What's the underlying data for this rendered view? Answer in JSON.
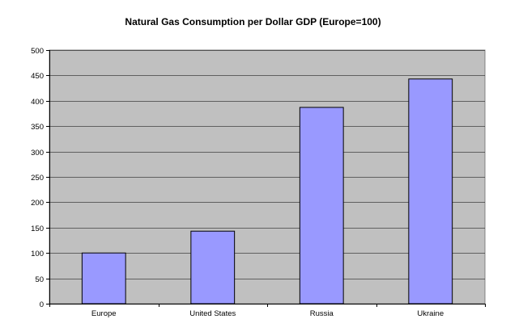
{
  "chart_data": {
    "type": "bar",
    "title": "Natural Gas Consumption per Dollar GDP (Europe=100)",
    "xlabel": "",
    "ylabel": "",
    "categories": [
      "Europe",
      "United States",
      "Russia",
      "Ukraine"
    ],
    "values": [
      100,
      143,
      387,
      443
    ],
    "ylim": [
      0,
      500
    ],
    "yticks": [
      0,
      50,
      100,
      150,
      200,
      250,
      300,
      350,
      400,
      450,
      500
    ],
    "grid": true,
    "legend": "none",
    "colors": {
      "plot_background": "#c0c0c0",
      "bar_fill": "#9999ff",
      "bar_stroke": "#000000",
      "gridline": "#000000"
    }
  }
}
